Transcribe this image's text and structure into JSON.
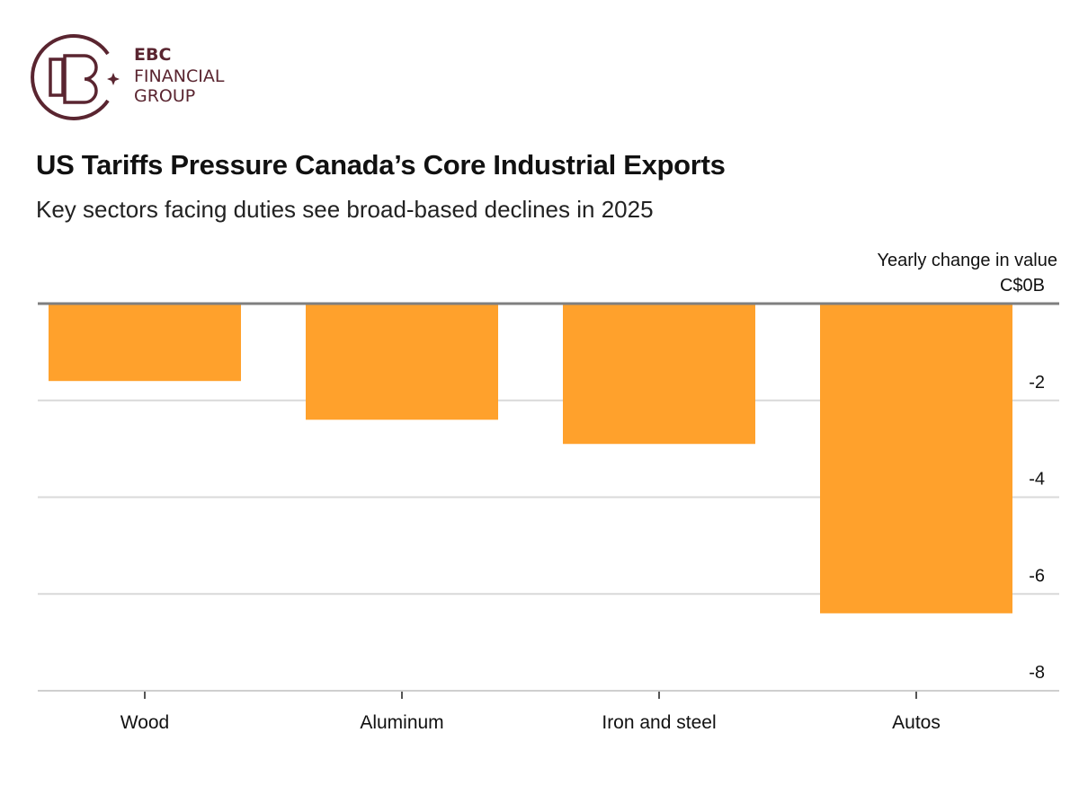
{
  "logo": {
    "line1": "EBC",
    "line2": "FINANCIAL",
    "line3": "GROUP",
    "color": "#5a2530"
  },
  "chart_data": {
    "type": "bar",
    "title": "US Tariffs Pressure Canada’s Core Industrial Exports",
    "subtitle": "Key sectors facing duties see broad-based declines in 2025",
    "ylabel": "Yearly change in value",
    "ytick_labels": [
      "C$0B",
      "-2",
      "-4",
      "-6",
      "-8"
    ],
    "yticks": [
      0,
      -2,
      -4,
      -6,
      -8
    ],
    "ylim": [
      -8,
      0
    ],
    "categories": [
      "Wood",
      "Aluminum",
      "Iron and steel",
      "Autos"
    ],
    "values": [
      -1.6,
      -2.4,
      -2.9,
      -6.4
    ],
    "bar_color": "#ffa12c",
    "grid": true,
    "yaxis_position": "right"
  }
}
